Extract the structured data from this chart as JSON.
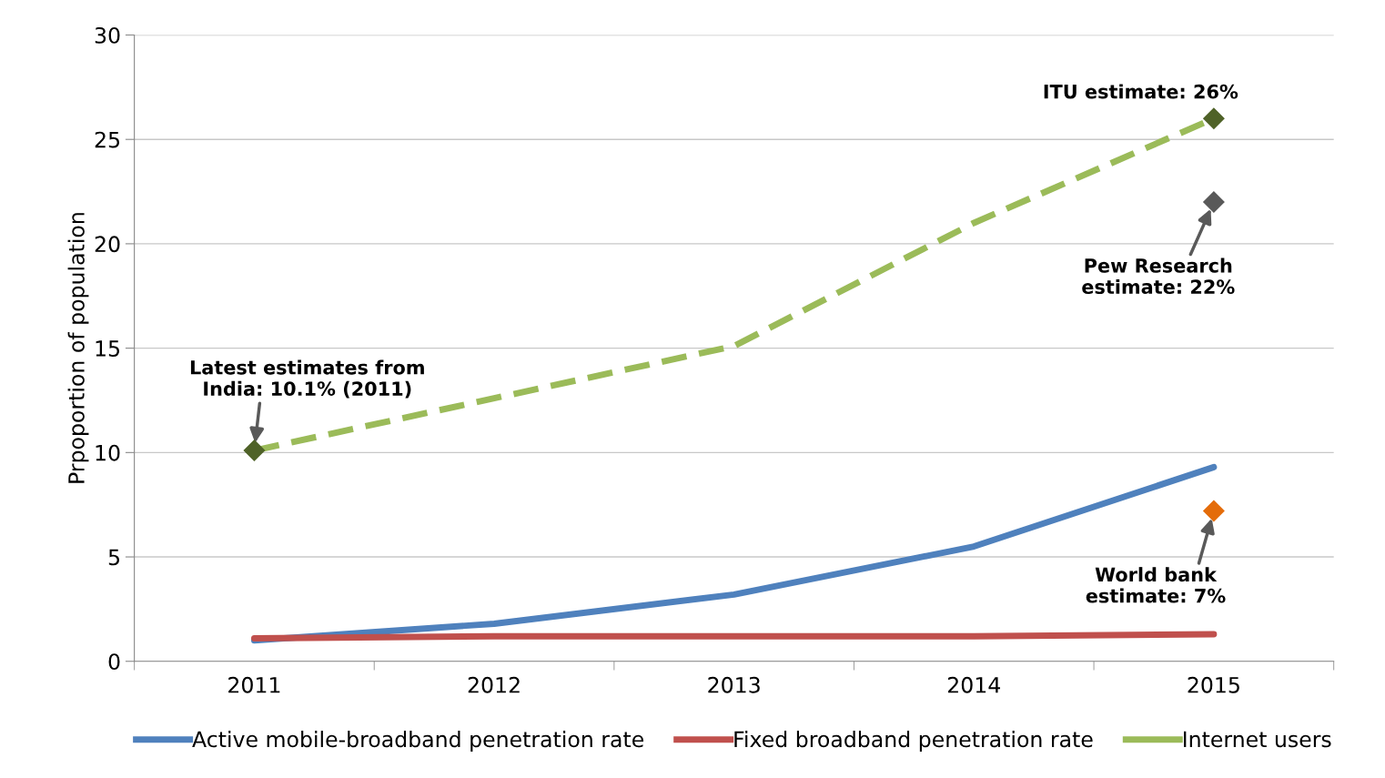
{
  "chart_data": {
    "type": "line",
    "ylabel": "Prpoportion of population",
    "categories": [
      "2011",
      "2012",
      "2013",
      "2014",
      "2015"
    ],
    "series": [
      {
        "name": "Active mobile-broadband penetration rate",
        "color": "#4f81bd",
        "values": [
          1.0,
          1.8,
          3.2,
          5.5,
          9.3
        ],
        "line_style": "solid"
      },
      {
        "name": "Fixed broadband penetration rate",
        "color": "#c0504d",
        "values": [
          1.1,
          1.2,
          1.2,
          1.2,
          1.3
        ],
        "line_style": "solid"
      },
      {
        "name": "Internet users",
        "color": "#9bbb59",
        "values": [
          10.1,
          12.6,
          15.1,
          21.0,
          26.0
        ],
        "line_style": "dashed"
      },
      {
        "type": "scatter",
        "color": "#4f6228",
        "values": [
          10.1,
          null,
          null,
          null,
          26.0
        ],
        "marker": "diamond"
      },
      {
        "type": "scatter",
        "color": "#595959",
        "values": [
          null,
          null,
          null,
          null,
          22.0
        ],
        "marker": "diamond"
      },
      {
        "type": "scatter",
        "color": "#e46c0a",
        "values": [
          null,
          null,
          null,
          null,
          7.2
        ],
        "marker": "diamond"
      }
    ],
    "ylim": [
      0,
      30
    ],
    "yticks": [
      0,
      5,
      10,
      15,
      20,
      25,
      30
    ],
    "grid": "y",
    "legend": "bottom",
    "annotations": [
      {
        "text": "Latest estimates from\nIndia: 10.1% (2011)",
        "x": "2011",
        "y": 10.1
      },
      {
        "text": "ITU estimate: 26%",
        "x": "2015",
        "y": 26.0
      },
      {
        "text": "Pew Research\nestimate: 22%",
        "x": "2015",
        "y": 22.0
      },
      {
        "text": "World bank\nestimate: 7%",
        "x": "2015",
        "y": 7.2
      }
    ]
  }
}
